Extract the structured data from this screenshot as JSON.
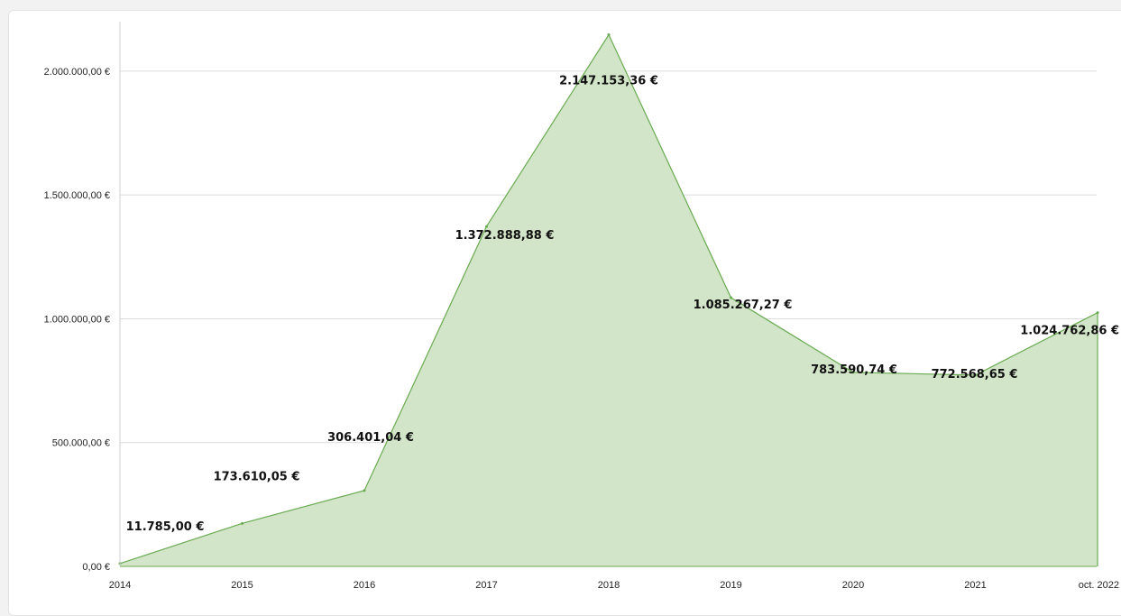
{
  "chart_data": {
    "type": "area",
    "categories": [
      "2014",
      "2015",
      "2016",
      "2017",
      "2018",
      "2019",
      "2020",
      "2021",
      "oct. 2022"
    ],
    "values": [
      11785.0,
      173610.05,
      306401.04,
      1372888.88,
      2147153.36,
      1085267.27,
      783590.74,
      772568.65,
      1024762.86
    ],
    "data_labels": [
      "11.785,00 €",
      "173.610,05 €",
      "306.401,04 €",
      "1.372.888,88 €",
      "2.147.153,36 €",
      "1.085.267,27 €",
      "783.590,74 €",
      "772.568,65 €",
      "1.024.762,86 €"
    ],
    "yticks": [
      0,
      500000,
      1000000,
      1500000,
      2000000
    ],
    "ytick_labels": [
      "0,00 €",
      "500.000,00 €",
      "1.000.000,00 €",
      "1.500.000,00 €",
      "2.000.000,00 €"
    ],
    "ylim": [
      0,
      2200000
    ],
    "grid": true,
    "legend": "none",
    "colors": {
      "fill": "#d3e5c8",
      "line": "#6aaa52",
      "grid": "#dcdcdc"
    }
  }
}
